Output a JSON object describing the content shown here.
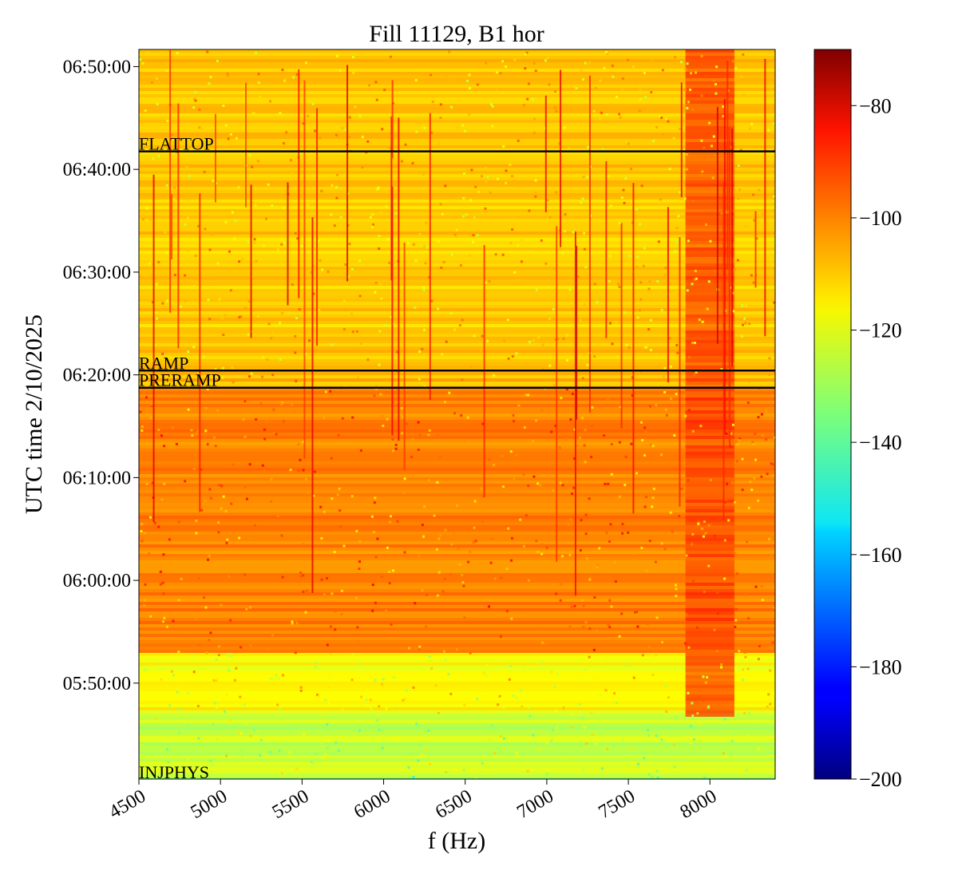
{
  "chart_data": {
    "type": "heatmap",
    "title": "Fill 11129, B1 hor",
    "xlabel": "f (Hz)",
    "ylabel": "UTC time 2/10/2025",
    "xlim": [
      4500,
      8400
    ],
    "ylim": [
      "05:40:40",
      "06:51:40"
    ],
    "x_ticks": [
      4500,
      5000,
      5500,
      6000,
      6500,
      7000,
      7500,
      8000
    ],
    "y_ticks": [
      {
        "value": "05:50:00",
        "label": "05:50:00"
      },
      {
        "value": "06:00:00",
        "label": "06:00:00"
      },
      {
        "value": "06:10:00",
        "label": "06:10:00"
      },
      {
        "value": "06:20:00",
        "label": "06:20:00"
      },
      {
        "value": "06:30:00",
        "label": "06:30:00"
      },
      {
        "value": "06:40:00",
        "label": "06:40:00"
      },
      {
        "value": "06:50:00",
        "label": "06:50:00"
      }
    ],
    "colorbar": {
      "colormap": "jet",
      "range": [
        -200,
        -70
      ],
      "ticks": [
        -200,
        -180,
        -160,
        -140,
        -120,
        -100,
        -80
      ],
      "tick_labels": [
        "−200",
        "−180",
        "−160",
        "−140",
        "−120",
        "−100",
        "−80"
      ]
    },
    "annotations": [
      {
        "text": "FLATTOP",
        "time": "06:41:45"
      },
      {
        "text": "RAMP",
        "time": "06:20:25"
      },
      {
        "text": "PRERAMP",
        "time": "06:18:45"
      },
      {
        "text": "INJPHYS",
        "time": "05:40:40"
      }
    ],
    "grid": false
  }
}
